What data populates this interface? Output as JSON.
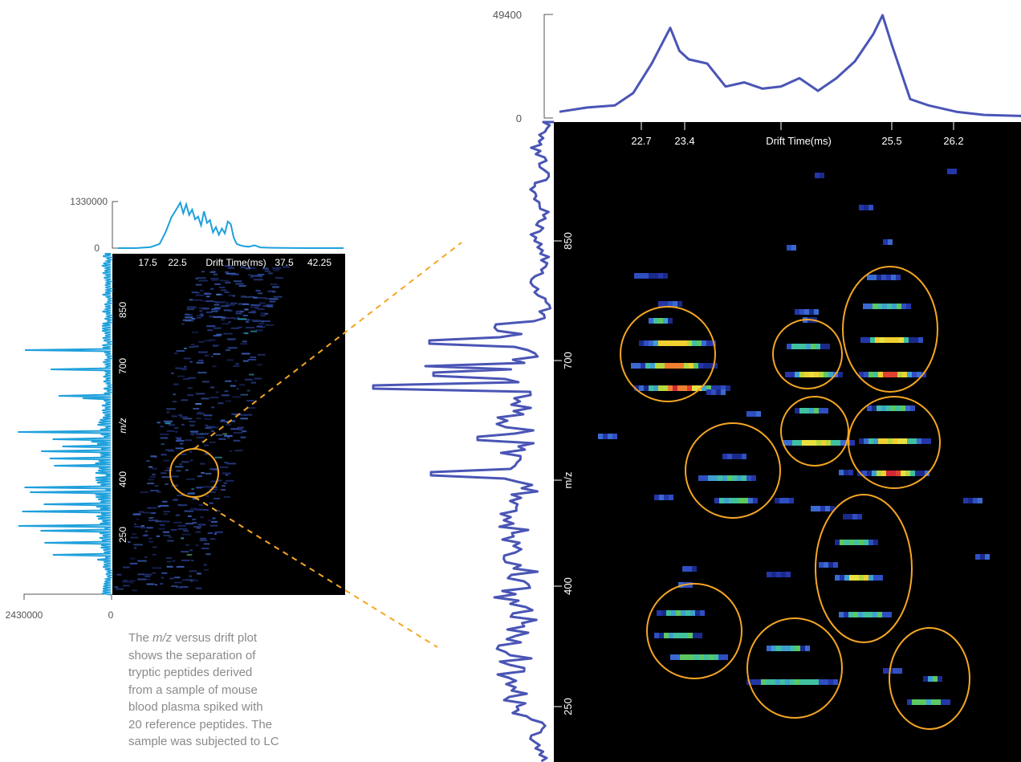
{
  "caption": {
    "line1_pre": "The ",
    "line1_em": "m/z",
    "line1_post": " versus drift plot",
    "rest": [
      "shows the separation of",
      "tryptic peptides derived",
      "from a sample of mouse",
      "blood plasma spiked with",
      "20 reference peptides. The",
      "sample was subjected to LC"
    ]
  },
  "colors": {
    "small_trace": "#1ea0dc",
    "large_trace": "#4a55b5",
    "highlight_circle": "#f5a623",
    "zoom_line": "#f5a623",
    "heatmap_bg": "#000000",
    "axis_text_dark": "#555555",
    "axis_text_light": "#ffffff"
  },
  "chart_data": [
    {
      "type": "heatmap",
      "title": "",
      "xlabel": "Drift Time(ms)",
      "ylabel": "m/z",
      "x_ticks": [
        "17.5",
        "22.5",
        "37.5",
        "42.25"
      ],
      "y_ticks": [
        "250",
        "400",
        "700",
        "850"
      ],
      "top_profile": {
        "y_ticks": [
          "0",
          "1330000"
        ],
        "ylim": [
          0,
          1330000
        ],
        "x": [
          12,
          15,
          17.5,
          19,
          20,
          21,
          22,
          22.5,
          23,
          23.5,
          24,
          24.5,
          25,
          25.5,
          26,
          26.5,
          27,
          27.5,
          28,
          28.5,
          29,
          29.5,
          30,
          30.5,
          31,
          31.5,
          32,
          33,
          34,
          35,
          36,
          38,
          40,
          45,
          50
        ],
        "y": [
          0,
          0,
          30000,
          120000,
          450000,
          880000,
          1150000,
          1300000,
          1000000,
          1250000,
          950000,
          1100000,
          820000,
          900000,
          650000,
          1050000,
          720000,
          800000,
          450000,
          600000,
          380000,
          560000,
          420000,
          760000,
          680000,
          300000,
          120000,
          60000,
          40000,
          80000,
          20000,
          10000,
          5000,
          0,
          0
        ]
      },
      "side_profile": {
        "x_ticks": [
          "2430000",
          "0"
        ],
        "xlim": [
          0,
          2430000
        ]
      }
    },
    {
      "type": "heatmap",
      "title": "",
      "xlabel": "Drift Time(ms)",
      "ylabel": "m/z",
      "x_ticks": [
        "22.7",
        "23.4",
        "25.5",
        "26.2"
      ],
      "y_ticks": [
        "250",
        "400",
        "700",
        "850"
      ],
      "top_profile": {
        "y_ticks": [
          "0",
          "49400"
        ],
        "ylim": [
          0,
          49400
        ],
        "x": [
          22.0,
          22.3,
          22.6,
          22.8,
          23.0,
          23.2,
          23.3,
          23.4,
          23.6,
          23.8,
          24.0,
          24.2,
          24.4,
          24.6,
          24.8,
          25.0,
          25.2,
          25.4,
          25.5,
          25.6,
          25.8,
          26.0,
          26.3,
          26.6,
          27.0
        ],
        "y": [
          3000,
          5000,
          6000,
          12000,
          26000,
          43000,
          32000,
          28000,
          26000,
          15000,
          17000,
          14000,
          15000,
          19000,
          13000,
          19000,
          27000,
          40000,
          49000,
          35000,
          9000,
          6000,
          3000,
          1500,
          1000
        ]
      }
    }
  ]
}
